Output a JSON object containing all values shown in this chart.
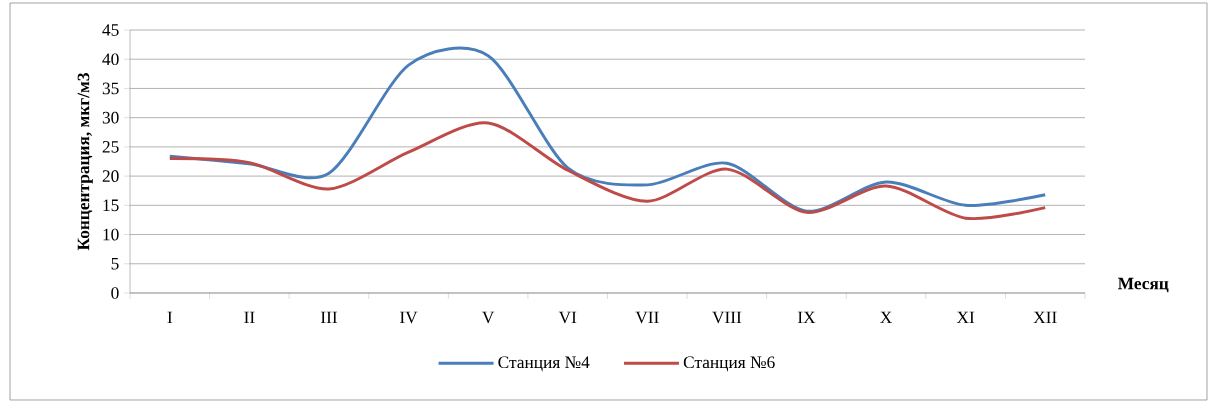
{
  "chart_data": {
    "type": "line",
    "xlabel": "Месяц",
    "ylabel": "Концентрация, мкг/м3",
    "categories": [
      "I",
      "II",
      "III",
      "IV",
      "V",
      "VI",
      "VII",
      "VIII",
      "IX",
      "X",
      "XI",
      "XII"
    ],
    "series": [
      {
        "name": "Станция №4",
        "color": "#4a7ebb",
        "values": [
          23.4,
          22.1,
          20.5,
          39,
          40.6,
          21.4,
          18.5,
          22.2,
          14,
          19,
          15,
          16.8
        ]
      },
      {
        "name": "Станция №6",
        "color": "#be4b48",
        "values": [
          23,
          22.3,
          17.8,
          24.1,
          29.1,
          21,
          15.7,
          21.2,
          13.8,
          18.3,
          12.8,
          14.6
        ]
      }
    ],
    "ylim": [
      0,
      45
    ],
    "yticks": [
      0,
      5,
      10,
      15,
      20,
      25,
      30,
      35,
      40,
      45
    ],
    "grid": "y",
    "legend": "bottom"
  }
}
